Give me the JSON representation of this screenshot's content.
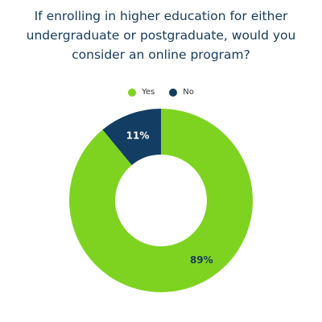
{
  "chart_data": {
    "type": "pie",
    "style": "donut",
    "title_lines": [
      "If enrolling in higher education for either",
      "undergraduate or postgraduate, would you",
      "consider an online program?"
    ],
    "legend_position": "top",
    "slices": [
      {
        "label": "Yes",
        "value": 89,
        "display": "89%",
        "color": "#7ed321",
        "text_color": "#1a3a5c"
      },
      {
        "label": "No",
        "value": 11,
        "display": "11%",
        "color": "#133d63",
        "text_color": "#ffffff"
      }
    ]
  }
}
